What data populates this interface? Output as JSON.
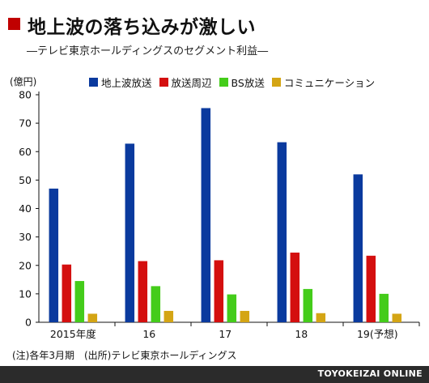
{
  "title": "地上波の落ち込みが激しい",
  "subtitle": "―テレビ東京ホールディングスのセグメント利益―",
  "unit": "(億円)",
  "note": "(注)各年3月期　(出所)テレビ東京ホールディングス",
  "footer": "TOYOKEIZAI ONLINE",
  "colors": {
    "title_marker": "#c00000",
    "axis": "#111111",
    "grid": "#cccccc"
  },
  "chart_data": {
    "type": "bar",
    "categories": [
      "2015年度",
      "16",
      "17",
      "18",
      "19(予想)"
    ],
    "series": [
      {
        "name": "地上波放送",
        "color": "#0a3a9e",
        "values": [
          47,
          62.8,
          75.3,
          63.3,
          52
        ]
      },
      {
        "name": "放送周辺",
        "color": "#d40f0f",
        "values": [
          20.3,
          21.5,
          21.8,
          24.5,
          23.4
        ]
      },
      {
        "name": "BS放送",
        "color": "#44cc1a",
        "values": [
          14.5,
          12.7,
          9.8,
          11.7,
          10
        ]
      },
      {
        "name": "コミュニケーション",
        "color": "#d4a514",
        "values": [
          3,
          4,
          4,
          3.2,
          3
        ]
      }
    ],
    "yticks": [
      0,
      10,
      20,
      30,
      40,
      50,
      60,
      70,
      80
    ],
    "ylim": [
      0,
      80
    ],
    "grid": false,
    "legend_position": "top"
  }
}
